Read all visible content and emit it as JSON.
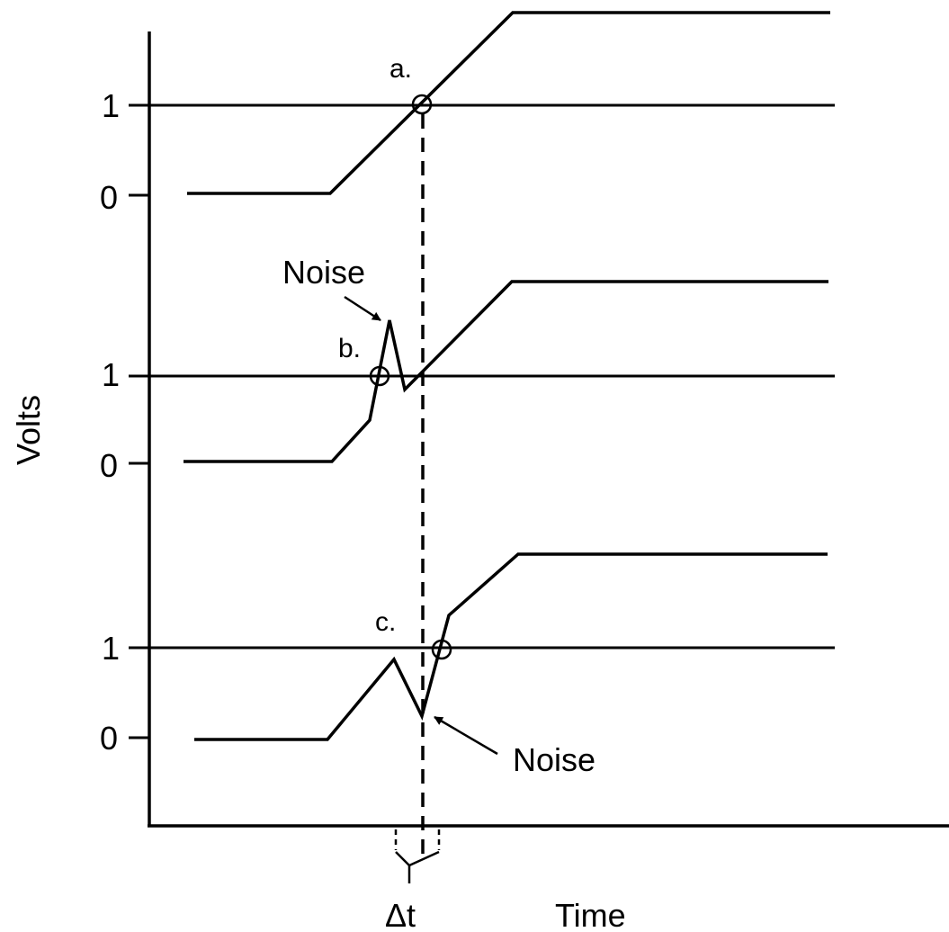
{
  "axes": {
    "y_label": "Volts",
    "x_label": "Time"
  },
  "panels": [
    {
      "id": "a",
      "tag": "a.",
      "tick_one": "1",
      "tick_zero": "0"
    },
    {
      "id": "b",
      "tag": "b.",
      "tick_one": "1",
      "tick_zero": "0",
      "noise_label": "Noise"
    },
    {
      "id": "c",
      "tag": "c.",
      "tick_one": "1",
      "tick_zero": "0",
      "noise_label": "Noise"
    }
  ],
  "delta_label": "Δt",
  "colors": {
    "line": "#000000",
    "background": "#ffffff"
  }
}
